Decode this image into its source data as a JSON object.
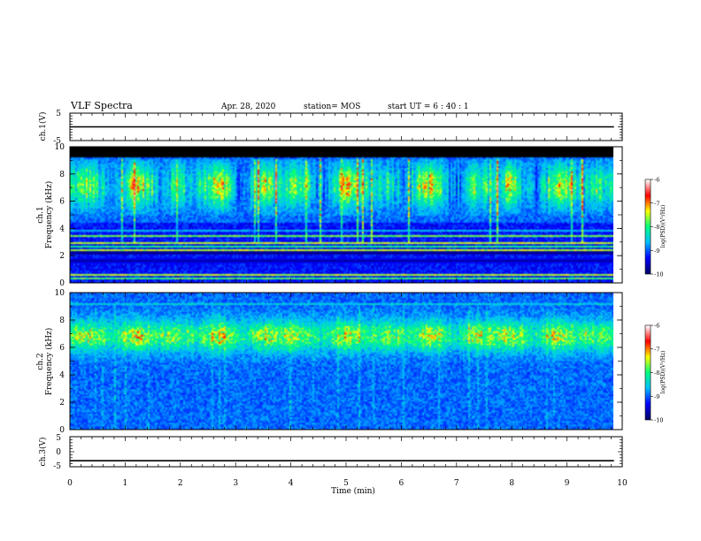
{
  "header": {
    "title": "VLF Spectra",
    "date": "Apr. 28, 2020",
    "station": "station= MOS",
    "start": "start  UT =   6 : 40 : 1"
  },
  "chart_data": {
    "type": "heatmap",
    "x_axis": {
      "label": "Time  (min)",
      "range": [
        0,
        10
      ],
      "ticks": [
        0,
        1,
        2,
        3,
        4,
        5,
        6,
        7,
        8,
        9,
        10
      ],
      "data_end": 9.85
    },
    "panels": [
      {
        "id": "ch1-waveform",
        "kind": "line",
        "ylabel": "ch.1(V)",
        "ylim": [
          -5,
          5
        ],
        "yticks": [
          5,
          -5
        ],
        "level": 0
      },
      {
        "id": "ch1-spectrogram",
        "kind": "spectrogram",
        "ylabel_top": "ch.1",
        "ylabel": "Frequency  (kHz)",
        "ylim": [
          0,
          10
        ],
        "yticks": [
          0,
          2,
          4,
          6,
          8,
          10
        ],
        "colorbar": {
          "label": "log(PSD)(V²/Hz)",
          "range": [
            -10,
            -6
          ],
          "ticks": [
            -6,
            -7,
            -8,
            -9,
            -10
          ]
        }
      },
      {
        "id": "ch2-spectrogram",
        "kind": "spectrogram",
        "ylabel_top": "ch.2",
        "ylabel": "Frequency  (kHz)",
        "ylim": [
          0,
          10
        ],
        "yticks": [
          0,
          2,
          4,
          6,
          8,
          10
        ],
        "colorbar": {
          "label": "log(PSD)(V²/Hz)",
          "range": [
            -10,
            -6
          ],
          "ticks": [
            -6,
            -7,
            -8,
            -9,
            -10
          ]
        }
      },
      {
        "id": "ch3-waveform",
        "kind": "line",
        "ylabel": "ch.3(V)",
        "ylim": [
          -5,
          5
        ],
        "yticks": [
          5,
          0,
          -5
        ],
        "level": -3
      }
    ],
    "colormap": [
      "#000066",
      "#0000ff",
      "#00bfff",
      "#00ff7f",
      "#ffff00",
      "#ff0000",
      "#ffffff"
    ]
  }
}
